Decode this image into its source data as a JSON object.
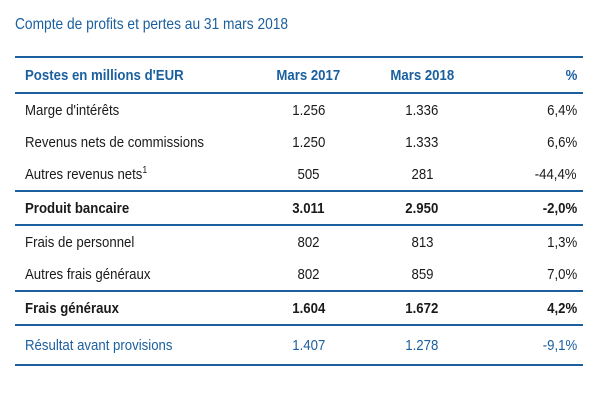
{
  "title": "Compte de profits et pertes au 31 mars 2018",
  "table": {
    "headers": {
      "label": "Postes en millions d'EUR",
      "mars2017": "Mars 2017",
      "mars2018": "Mars 2018",
      "pct": "%"
    },
    "rows": [
      {
        "label": "Marge d'intérêts",
        "footnote": "",
        "mars2017": "1.256",
        "mars2018": "1.336",
        "pct": "6,4%"
      },
      {
        "label": "Revenus nets de commissions",
        "footnote": "",
        "mars2017": "1.250",
        "mars2018": "1.333",
        "pct": "6,6%"
      },
      {
        "label": "Autres revenus nets",
        "footnote": "1",
        "mars2017": "505",
        "mars2018": "281",
        "pct": "-44,4%"
      },
      {
        "label": "Produit bancaire",
        "footnote": "",
        "mars2017": "3.011",
        "mars2018": "2.950",
        "pct": "-2,0%"
      },
      {
        "label": "Frais de personnel",
        "footnote": "",
        "mars2017": "802",
        "mars2018": "813",
        "pct": "1,3%"
      },
      {
        "label": "Autres frais généraux",
        "footnote": "",
        "mars2017": "802",
        "mars2018": "859",
        "pct": "7,0%"
      },
      {
        "label": "Frais généraux",
        "footnote": "",
        "mars2017": "1.604",
        "mars2018": "1.672",
        "pct": "4,2%"
      },
      {
        "label": "Résultat avant provisions",
        "footnote": "",
        "mars2017": "1.407",
        "mars2018": "1.278",
        "pct": "-9,1%"
      }
    ]
  },
  "colors": {
    "accent": "#1a5f9e",
    "text": "#1a1a1a"
  }
}
